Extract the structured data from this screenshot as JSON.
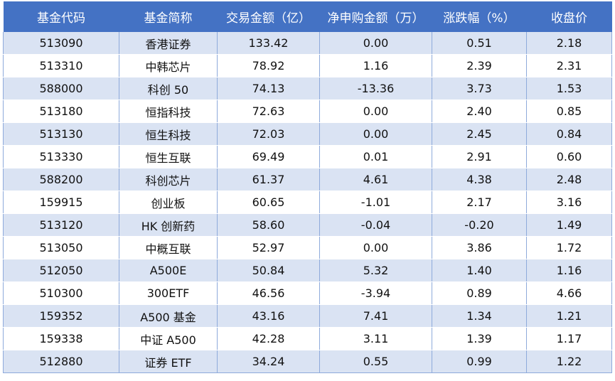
{
  "table": {
    "headers": [
      "基金代码",
      "基金简称",
      "交易金额（亿）",
      "净申购金额（万）",
      "涨跌幅（%）",
      "收盘价"
    ],
    "rows": [
      [
        "513090",
        "香港证券",
        "133.42",
        "0.00",
        "0.51",
        "2.18"
      ],
      [
        "513310",
        "中韩芯片",
        "78.92",
        "1.16",
        "2.39",
        "2.31"
      ],
      [
        "588000",
        "科创 50",
        "74.13",
        "-13.36",
        "3.73",
        "1.53"
      ],
      [
        "513180",
        "恒指科技",
        "72.63",
        "0.00",
        "2.40",
        "0.85"
      ],
      [
        "513130",
        "恒生科技",
        "72.03",
        "0.00",
        "2.45",
        "0.84"
      ],
      [
        "513330",
        "恒生互联",
        "69.49",
        "0.01",
        "2.91",
        "0.60"
      ],
      [
        "588200",
        "科创芯片",
        "61.37",
        "4.61",
        "4.38",
        "2.48"
      ],
      [
        "159915",
        "创业板",
        "60.65",
        "-1.01",
        "2.17",
        "3.16"
      ],
      [
        "513120",
        "HK 创新药",
        "58.60",
        "-0.04",
        "-0.20",
        "1.49"
      ],
      [
        "513050",
        "中概互联",
        "52.97",
        "0.00",
        "3.86",
        "1.72"
      ],
      [
        "512050",
        "A500E",
        "50.84",
        "5.32",
        "1.40",
        "1.16"
      ],
      [
        "510300",
        "300ETF",
        "46.56",
        "-3.94",
        "0.89",
        "4.66"
      ],
      [
        "159352",
        "A500 基金",
        "43.16",
        "7.41",
        "1.34",
        "1.21"
      ],
      [
        "159338",
        "中证 A500",
        "42.28",
        "3.11",
        "1.39",
        "1.17"
      ],
      [
        "512880",
        "证券 ETF",
        "34.24",
        "0.55",
        "0.99",
        "1.22"
      ]
    ]
  },
  "colors": {
    "header_bg": "#4472c4",
    "header_text": "#ffffff",
    "band_row": "#dae3f3",
    "plain_row": "#ffffff",
    "border": "#8eaadb"
  }
}
